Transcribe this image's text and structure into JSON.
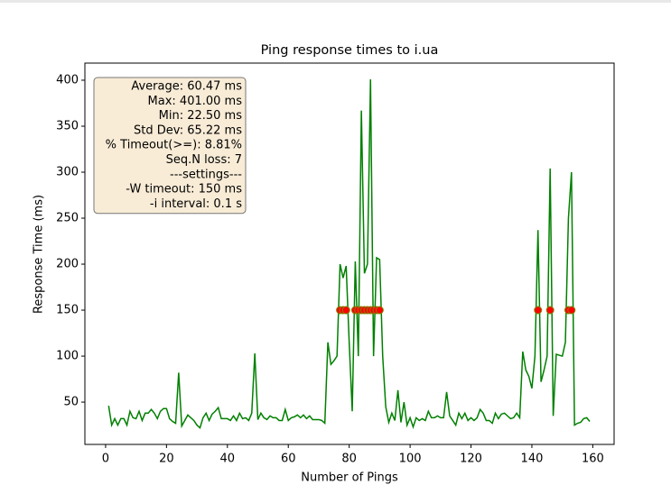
{
  "chart_data": {
    "type": "line",
    "title": "Ping response times to i.ua",
    "x_label": "Number of Pings",
    "y_label": "Response Time (ms)",
    "annotations": [
      "Average: 60.47 ms",
      "Max: 401.00 ms",
      "Min: 22.50 ms",
      "Std Dev: 65.22 ms",
      "% Timeout(>=): 8.81%",
      "Seq.N loss: 7",
      "---settings---",
      "-W timeout: 150 ms",
      "-i interval: 0.1 s"
    ],
    "x": [
      1,
      2,
      3,
      4,
      5,
      6,
      7,
      8,
      9,
      10,
      11,
      12,
      13,
      14,
      15,
      16,
      17,
      18,
      19,
      20,
      21,
      22,
      23,
      24,
      25,
      26,
      27,
      28,
      29,
      30,
      31,
      32,
      33,
      34,
      35,
      36,
      37,
      38,
      39,
      40,
      41,
      42,
      43,
      44,
      45,
      46,
      47,
      48,
      49,
      50,
      51,
      52,
      53,
      54,
      55,
      56,
      57,
      58,
      59,
      60,
      61,
      62,
      63,
      64,
      65,
      66,
      67,
      68,
      69,
      70,
      71,
      72,
      73,
      74,
      75,
      76,
      77,
      78,
      79,
      80,
      81,
      82,
      83,
      84,
      85,
      86,
      87,
      88,
      89,
      90,
      91,
      92,
      93,
      94,
      95,
      96,
      97,
      98,
      99,
      100,
      101,
      102,
      103,
      104,
      105,
      106,
      107,
      108,
      109,
      110,
      111,
      112,
      113,
      114,
      115,
      116,
      117,
      118,
      119,
      120,
      121,
      122,
      123,
      124,
      125,
      126,
      127,
      128,
      129,
      130,
      131,
      132,
      133,
      134,
      135,
      136,
      137,
      138,
      139,
      140,
      141,
      142,
      143,
      144,
      145,
      146,
      147,
      148,
      149,
      150,
      151,
      152,
      153,
      154,
      155,
      156,
      157,
      158,
      159
    ],
    "series": [
      {
        "color": "#008000",
        "values": [
          46,
          25,
          32,
          25,
          32,
          32,
          25,
          40,
          33,
          32,
          40,
          30,
          38,
          38,
          42,
          38,
          32,
          40,
          43,
          43,
          32,
          29,
          27,
          82,
          24,
          30,
          36,
          33,
          30,
          25,
          22,
          33,
          38,
          30,
          37,
          40,
          44,
          32,
          32,
          32,
          30,
          35,
          30,
          38,
          32,
          33,
          30,
          38,
          103,
          31,
          38,
          33,
          31,
          35,
          33,
          33,
          30,
          30,
          42,
          30,
          33,
          34,
          36,
          33,
          36,
          32,
          35,
          31,
          31,
          31,
          30,
          27,
          115,
          91,
          95,
          100,
          200,
          185,
          198,
          115,
          40,
          203,
          100,
          367,
          190,
          200,
          401,
          100,
          207,
          205,
          100,
          45,
          28,
          38,
          30,
          63,
          28,
          50,
          25,
          33,
          23,
          33,
          30,
          32,
          30,
          40,
          33,
          33,
          35,
          33,
          33,
          61,
          35,
          30,
          25,
          38,
          32,
          38,
          30,
          33,
          30,
          33,
          42,
          38,
          30,
          30,
          27,
          38,
          32,
          37,
          38,
          35,
          32,
          33,
          38,
          33,
          105,
          85,
          78,
          65,
          100,
          237,
          72,
          85,
          100,
          304,
          35,
          102,
          101,
          100,
          115,
          250,
          300,
          25,
          27,
          28,
          32,
          33,
          29
        ]
      },
      {
        "type": "scatter",
        "color": "#ff0000",
        "edgecolor": "#808000",
        "x": [
          77,
          78,
          79,
          82,
          83,
          84,
          85,
          86,
          87,
          88,
          89,
          90,
          142,
          146,
          152,
          153
        ],
        "values": [
          150,
          150,
          150,
          150,
          150,
          150,
          150,
          150,
          150,
          150,
          150,
          150,
          150,
          150,
          150,
          150
        ]
      }
    ],
    "xlim": [
      -6.8,
      167
    ],
    "ylim": [
      4,
      418.6
    ],
    "xticks": [
      0,
      20,
      40,
      60,
      80,
      100,
      120,
      140,
      160
    ],
    "yticks": [
      50,
      100,
      150,
      200,
      250,
      300,
      350,
      400
    ]
  }
}
